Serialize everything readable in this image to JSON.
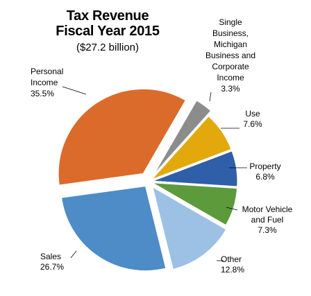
{
  "chart_data": {
    "type": "pie",
    "title": "Tax Revenue",
    "subtitle_line2": "Fiscal Year 2015",
    "subtitle": "($27.2 billion)",
    "slices": [
      {
        "label_lines": [
          "Single",
          "Business,",
          "Michigan",
          "Business and",
          "Corporate",
          "Income"
        ],
        "pct_label": "3.3%",
        "value": 3.3,
        "color": "#8c8c8c"
      },
      {
        "label_lines": [
          "Use"
        ],
        "pct_label": "7.6%",
        "value": 7.6,
        "color": "#e3a90c"
      },
      {
        "label_lines": [
          "Property"
        ],
        "pct_label": "6.8%",
        "value": 6.8,
        "color": "#2f5fa8"
      },
      {
        "label_lines": [
          "Motor Vehicle",
          "and Fuel"
        ],
        "pct_label": "7.3%",
        "value": 7.3,
        "color": "#5d9a3c"
      },
      {
        "label_lines": [
          "Other"
        ],
        "pct_label": "12.8%",
        "value": 12.8,
        "color": "#9dc0e5"
      },
      {
        "label_lines": [
          "Sales"
        ],
        "pct_label": "26.7%",
        "value": 26.7,
        "color": "#4d8cc6"
      },
      {
        "label_lines": [
          "Personal",
          "Income"
        ],
        "pct_label": "35.5%",
        "value": 35.5,
        "color": "#db6b2a"
      }
    ]
  }
}
